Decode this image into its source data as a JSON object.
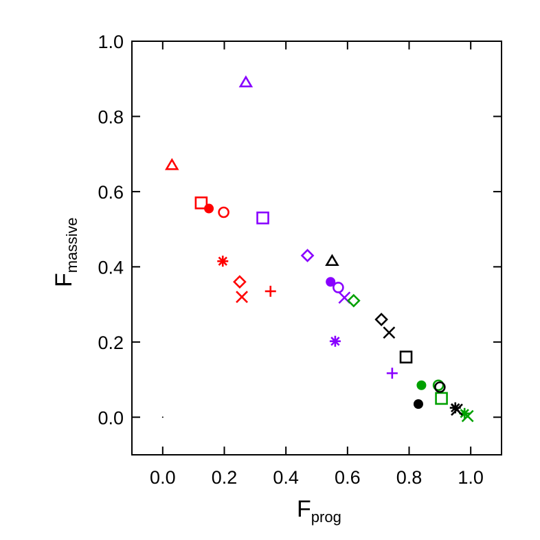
{
  "chart_data": {
    "type": "scatter",
    "title": "",
    "xlabel": {
      "main": "F",
      "sub": "prog"
    },
    "ylabel": {
      "main": "F",
      "sub": "massive"
    },
    "xlim": [
      -0.1,
      1.1
    ],
    "ylim": [
      -0.1,
      1.0
    ],
    "x_ticks": [
      {
        "value": 0.0,
        "label": "0.0"
      },
      {
        "value": 0.2,
        "label": "0.2"
      },
      {
        "value": 0.4,
        "label": "0.4"
      },
      {
        "value": 0.6,
        "label": "0.6"
      },
      {
        "value": 0.8,
        "label": "0.8"
      },
      {
        "value": 1.0,
        "label": "1.0"
      }
    ],
    "y_ticks": [
      {
        "value": 0.0,
        "label": "0.0"
      },
      {
        "value": 0.2,
        "label": "0.2"
      },
      {
        "value": 0.4,
        "label": "0.4"
      },
      {
        "value": 0.6,
        "label": "0.6"
      },
      {
        "value": 0.8,
        "label": "0.8"
      },
      {
        "value": 1.0,
        "label": "1.0"
      }
    ],
    "grid": false,
    "legend": "none",
    "colors": {
      "red": "#ff0000",
      "purple": "#8800ff",
      "green": "#00a000",
      "black": "#000000"
    },
    "points": [
      {
        "x": 0.0,
        "y": 0.0,
        "marker": "dot",
        "color": "black"
      },
      {
        "x": 0.03,
        "y": 0.67,
        "marker": "triangle",
        "color": "red"
      },
      {
        "x": 0.125,
        "y": 0.57,
        "marker": "square",
        "color": "red"
      },
      {
        "x": 0.15,
        "y": 0.555,
        "marker": "filled-circle",
        "color": "red"
      },
      {
        "x": 0.198,
        "y": 0.545,
        "marker": "circle",
        "color": "red"
      },
      {
        "x": 0.195,
        "y": 0.415,
        "marker": "asterisk",
        "color": "red"
      },
      {
        "x": 0.25,
        "y": 0.36,
        "marker": "diamond",
        "color": "red"
      },
      {
        "x": 0.257,
        "y": 0.32,
        "marker": "x",
        "color": "red"
      },
      {
        "x": 0.35,
        "y": 0.335,
        "marker": "plus",
        "color": "red"
      },
      {
        "x": 0.27,
        "y": 0.89,
        "marker": "triangle",
        "color": "purple"
      },
      {
        "x": 0.325,
        "y": 0.53,
        "marker": "square",
        "color": "purple"
      },
      {
        "x": 0.47,
        "y": 0.43,
        "marker": "diamond",
        "color": "purple"
      },
      {
        "x": 0.545,
        "y": 0.36,
        "marker": "filled-circle",
        "color": "purple"
      },
      {
        "x": 0.57,
        "y": 0.345,
        "marker": "circle",
        "color": "purple"
      },
      {
        "x": 0.59,
        "y": 0.318,
        "marker": "x",
        "color": "purple"
      },
      {
        "x": 0.56,
        "y": 0.202,
        "marker": "asterisk",
        "color": "purple"
      },
      {
        "x": 0.745,
        "y": 0.117,
        "marker": "plus",
        "color": "purple"
      },
      {
        "x": 0.62,
        "y": 0.31,
        "marker": "diamond",
        "color": "green"
      },
      {
        "x": 0.84,
        "y": 0.085,
        "marker": "filled-circle",
        "color": "green"
      },
      {
        "x": 0.895,
        "y": 0.085,
        "marker": "circle",
        "color": "green"
      },
      {
        "x": 0.905,
        "y": 0.05,
        "marker": "square",
        "color": "green"
      },
      {
        "x": 0.98,
        "y": 0.01,
        "marker": "asterisk",
        "color": "green"
      },
      {
        "x": 0.99,
        "y": 0.003,
        "marker": "x",
        "color": "green"
      },
      {
        "x": 0.55,
        "y": 0.415,
        "marker": "triangle",
        "color": "black"
      },
      {
        "x": 0.71,
        "y": 0.26,
        "marker": "diamond",
        "color": "black"
      },
      {
        "x": 0.735,
        "y": 0.225,
        "marker": "x",
        "color": "black"
      },
      {
        "x": 0.79,
        "y": 0.16,
        "marker": "square",
        "color": "black"
      },
      {
        "x": 0.83,
        "y": 0.035,
        "marker": "filled-circle",
        "color": "black"
      },
      {
        "x": 0.9,
        "y": 0.08,
        "marker": "circle",
        "color": "black"
      },
      {
        "x": 0.95,
        "y": 0.025,
        "marker": "asterisk",
        "color": "black"
      },
      {
        "x": 0.955,
        "y": 0.02,
        "marker": "x",
        "color": "black"
      }
    ]
  }
}
